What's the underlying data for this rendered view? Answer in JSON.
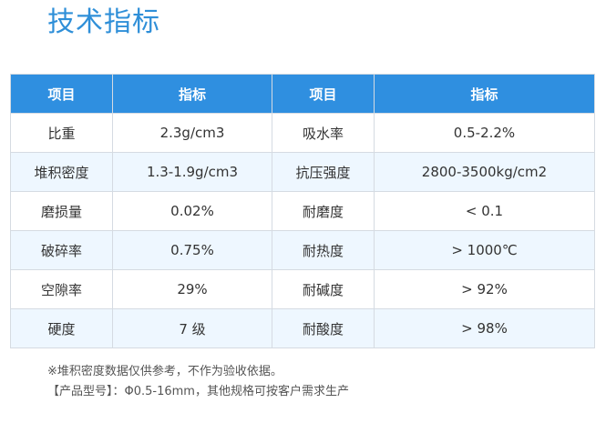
{
  "page": {
    "title": "技术指标"
  },
  "table": {
    "headers": [
      "项目",
      "指标",
      "项目",
      "指标"
    ],
    "rows": [
      [
        "比重",
        "2.3g/cm3",
        "吸水率",
        "0.5-2.2%"
      ],
      [
        "堆积密度",
        "1.3-1.9g/cm3",
        "抗压强度",
        "2800-3500kg/cm2"
      ],
      [
        "磨损量",
        "0.02%",
        "耐磨度",
        "< 0.1"
      ],
      [
        "破碎率",
        "0.75%",
        "耐热度",
        "> 1000℃"
      ],
      [
        "空隙率",
        "29%",
        "耐碱度",
        "> 92%"
      ],
      [
        "硬度",
        "7 级",
        "耐酸度",
        "> 98%"
      ]
    ]
  },
  "notes": {
    "note1": "※堆积密度数据仅供参考，不作为验收依据。",
    "note2": "【产品型号】：Φ0.5-16mm，其他规格可按客户需求生产"
  },
  "colors": {
    "title": "#2f8fd8",
    "header_bg": "#2f8fe0",
    "stripe_bg": "#eef7ff",
    "border": "#d5dbe2"
  }
}
